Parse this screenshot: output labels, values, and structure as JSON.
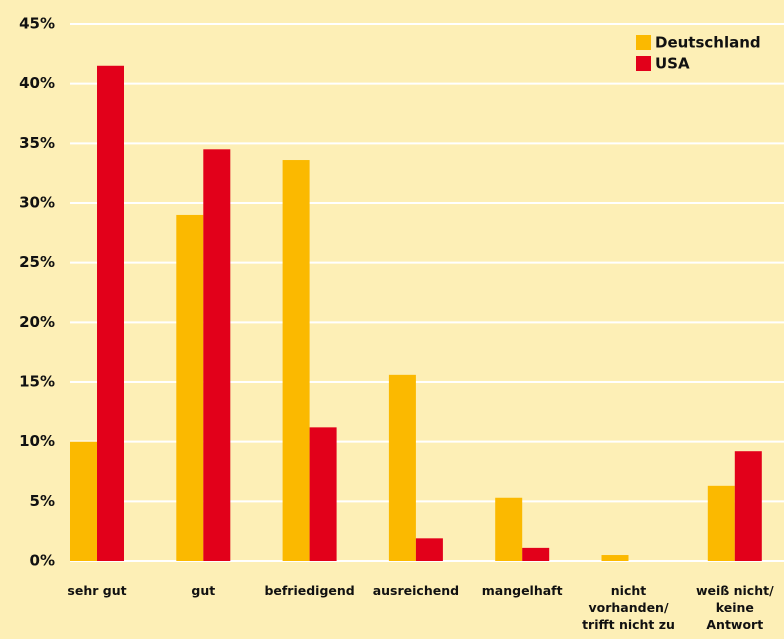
{
  "chart_data": {
    "type": "bar",
    "categories": [
      "sehr gut",
      "gut",
      "befriedigend",
      "ausreichend",
      "mangelhaft",
      "nicht\nvorhanden/\ntrifft nicht zu",
      "weiß nicht/\nkeine\nAntwort"
    ],
    "series": [
      {
        "name": "Deutschland",
        "color": "#fbb900",
        "values": [
          10,
          29,
          33.6,
          15.6,
          5.3,
          0.5,
          6.3
        ]
      },
      {
        "name": "USA",
        "color": "#e2001a",
        "values": [
          41.5,
          34.5,
          11.2,
          1.9,
          1.1,
          0,
          9.2
        ]
      }
    ],
    "ylim": [
      0,
      45
    ],
    "yticks": [
      {
        "value": 0,
        "label": "0%"
      },
      {
        "value": 5,
        "label": "5%"
      },
      {
        "value": 10,
        "label": "10%"
      },
      {
        "value": 15,
        "label": "15%"
      },
      {
        "value": 20,
        "label": "20%"
      },
      {
        "value": 25,
        "label": "25%"
      },
      {
        "value": 30,
        "label": "30%"
      },
      {
        "value": 35,
        "label": "35%"
      },
      {
        "value": 40,
        "label": "40%"
      },
      {
        "value": 45,
        "label": "45%"
      }
    ],
    "grid": true,
    "legend": "upper right"
  }
}
